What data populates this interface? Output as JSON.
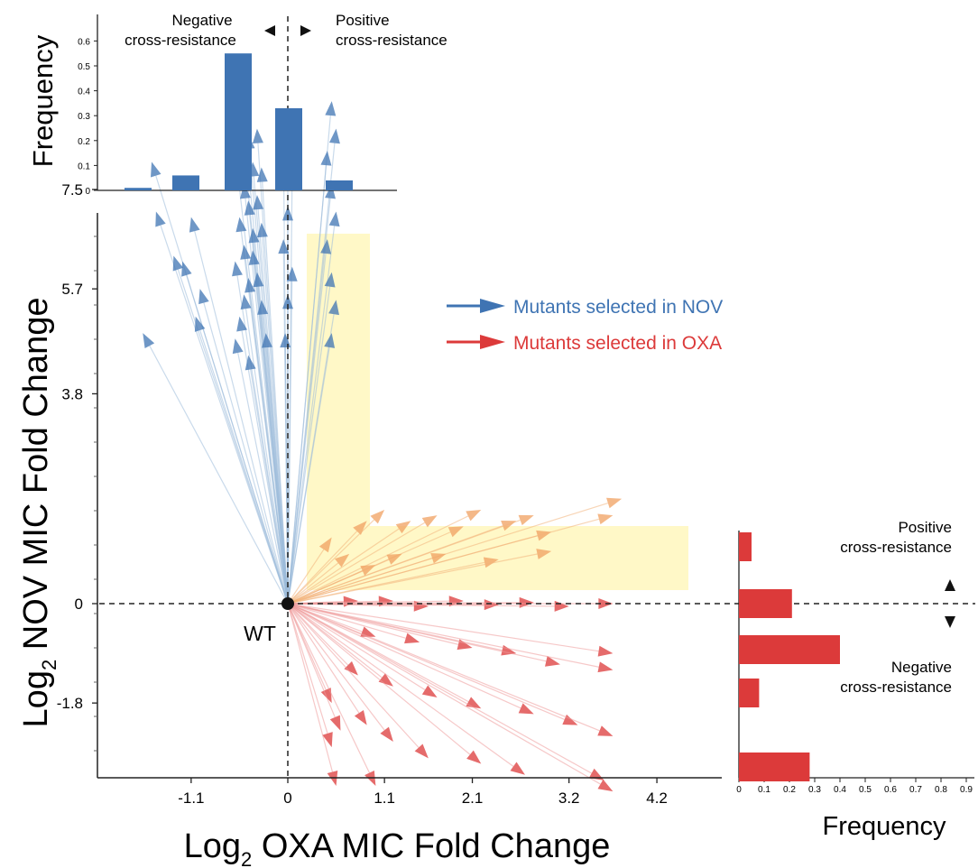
{
  "colors": {
    "nov": "#3f74b3",
    "nov_light": "#9dbbdb",
    "oxa": "#dc3a3a",
    "oxa_light": "#ef9a9a",
    "orange": "#f0a060",
    "highlight": "#fff8c7",
    "axis": "#222222"
  },
  "main": {
    "xlabel_base": "Log",
    "xlabel_sub": "2",
    "xlabel_rest": " OXA MIC Fold Change",
    "ylabel_base": "Log",
    "ylabel_sub": "2",
    "ylabel_rest": " NOV MIC Fold Change",
    "x_ticks": [
      "-1.1",
      "0",
      "1.1",
      "2.1",
      "3.2",
      "4.2"
    ],
    "x_tick_values": [
      -1.1,
      0,
      1.1,
      2.1,
      3.2,
      4.2
    ],
    "y_ticks": [
      "-1.8",
      "0",
      "3.8",
      "5.7",
      "7.5"
    ],
    "y_tick_values": [
      -1.8,
      0,
      3.8,
      5.7,
      7.5
    ],
    "origin_label": "WT",
    "legend": [
      {
        "label": "Mutants selected in NOV",
        "color": "#3f74b3"
      },
      {
        "label": "Mutants selected in OXA",
        "color": "#dc3a3a"
      }
    ]
  },
  "chart_data": [
    {
      "type": "bar",
      "ylabel": "Frequency",
      "y_ticks": [
        "0",
        "0.1",
        "0.2",
        "0.3",
        "0.4",
        "0.5",
        "0.6"
      ],
      "values": [
        0.01,
        0.06,
        0.55,
        0.33,
        0.04
      ],
      "color": "#3f74b3",
      "annotations": {
        "neg1": "Negative",
        "neg2": "cross-resistance",
        "pos1": "Positive",
        "pos2": "cross-resistance"
      }
    },
    {
      "type": "bar",
      "orientation": "horizontal",
      "xlabel": "Frequency",
      "x_ticks": [
        "0",
        "0.1",
        "0.2",
        "0.3",
        "0.4",
        "0.5",
        "0.6",
        "0.7",
        "0.8",
        "0.9"
      ],
      "values": [
        0.05,
        0.21,
        0.4,
        0.08,
        0.28
      ],
      "color": "#dc3a3a",
      "annotations": {
        "pos1": "Positive",
        "pos2": "cross-resistance",
        "neg1": "Negative",
        "neg2": "cross-resistance"
      }
    },
    {
      "type": "scatter",
      "description_free": true,
      "origin": [
        0,
        0
      ],
      "nov_vectors": [
        [
          -1.55,
          8.0
        ],
        [
          -1.5,
          7.1
        ],
        [
          -1.65,
          4.9
        ],
        [
          -1.3,
          6.3
        ],
        [
          -1.1,
          7.0
        ],
        [
          -1.2,
          6.2
        ],
        [
          -1.0,
          5.7
        ],
        [
          -1.05,
          5.2
        ],
        [
          -0.55,
          9.1
        ],
        [
          -0.5,
          8.8
        ],
        [
          -0.45,
          8.5
        ],
        [
          -0.6,
          8.2
        ],
        [
          -0.4,
          8.0
        ],
        [
          -0.5,
          7.6
        ],
        [
          -0.45,
          7.3
        ],
        [
          -0.55,
          7.0
        ],
        [
          -0.4,
          6.8
        ],
        [
          -0.5,
          6.5
        ],
        [
          -0.6,
          6.2
        ],
        [
          -0.45,
          5.9
        ],
        [
          -0.5,
          5.6
        ],
        [
          -0.55,
          5.2
        ],
        [
          -0.6,
          4.8
        ],
        [
          -0.45,
          4.5
        ],
        [
          -0.35,
          8.6
        ],
        [
          -0.3,
          7.9
        ],
        [
          -0.35,
          7.4
        ],
        [
          -0.3,
          6.9
        ],
        [
          -0.4,
          6.4
        ],
        [
          -0.35,
          6.0
        ],
        [
          -0.3,
          5.5
        ],
        [
          -0.25,
          4.9
        ],
        [
          0.0,
          9.0
        ],
        [
          -0.05,
          8.4
        ],
        [
          0.05,
          7.8
        ],
        [
          0.0,
          7.2
        ],
        [
          -0.05,
          6.6
        ],
        [
          0.05,
          6.1
        ],
        [
          0.0,
          5.6
        ],
        [
          -0.03,
          4.9
        ],
        [
          0.5,
          9.1
        ],
        [
          0.55,
          8.6
        ],
        [
          0.45,
          8.2
        ],
        [
          0.5,
          7.6
        ],
        [
          0.55,
          7.1
        ],
        [
          0.45,
          6.6
        ],
        [
          0.5,
          6.0
        ],
        [
          0.55,
          5.5
        ],
        [
          0.5,
          4.9
        ]
      ],
      "oxa_vectors": [
        [
          0.9,
          1.5
        ],
        [
          1.1,
          1.7
        ],
        [
          1.4,
          1.5
        ],
        [
          1.7,
          1.6
        ],
        [
          2.0,
          1.4
        ],
        [
          2.2,
          1.7
        ],
        [
          2.6,
          1.5
        ],
        [
          2.8,
          1.6
        ],
        [
          3.0,
          1.3
        ],
        [
          3.7,
          1.6
        ],
        [
          3.8,
          1.9
        ],
        [
          0.5,
          1.2
        ],
        [
          0.7,
          0.9
        ],
        [
          1.0,
          0.7
        ],
        [
          1.3,
          0.9
        ],
        [
          1.8,
          0.9
        ],
        [
          2.4,
          0.8
        ],
        [
          3.0,
          0.95
        ],
        [
          0.8,
          0.05
        ],
        [
          1.2,
          0.05
        ],
        [
          1.6,
          -0.05
        ],
        [
          2.0,
          0.05
        ],
        [
          2.4,
          -0.02
        ],
        [
          2.8,
          0.02
        ],
        [
          3.2,
          -0.05
        ],
        [
          3.7,
          0.0
        ],
        [
          1.0,
          -0.6
        ],
        [
          1.5,
          -0.7
        ],
        [
          2.1,
          -0.8
        ],
        [
          2.6,
          -0.9
        ],
        [
          3.1,
          -1.1
        ],
        [
          3.7,
          -0.9
        ],
        [
          3.7,
          -1.2
        ],
        [
          0.8,
          -1.3
        ],
        [
          1.2,
          -1.5
        ],
        [
          1.7,
          -1.7
        ],
        [
          2.2,
          -1.9
        ],
        [
          2.8,
          -2.0
        ],
        [
          3.3,
          -2.2
        ],
        [
          3.7,
          -2.4
        ],
        [
          0.5,
          -1.8
        ],
        [
          0.6,
          -2.3
        ],
        [
          0.9,
          -2.2
        ],
        [
          1.2,
          -2.5
        ],
        [
          1.6,
          -2.8
        ],
        [
          2.2,
          -2.9
        ],
        [
          2.7,
          -3.1
        ],
        [
          3.6,
          -3.2
        ],
        [
          3.7,
          -3.4
        ],
        [
          0.5,
          -2.6
        ],
        [
          0.55,
          -3.3
        ],
        [
          1.0,
          -3.3
        ]
      ]
    }
  ]
}
